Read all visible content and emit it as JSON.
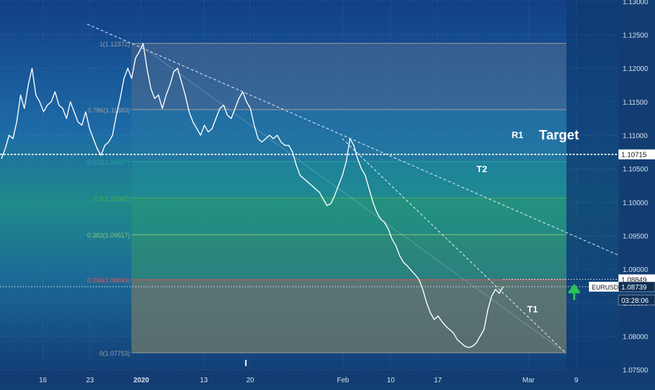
{
  "chart_data": {
    "type": "line",
    "symbol": "EURUSD",
    "y_axis": {
      "range": [
        1.0748,
        1.1302
      ],
      "ticks": [
        "1.07500",
        "1.08000",
        "1.08500",
        "1.09000",
        "1.09500",
        "1.10000",
        "1.10500",
        "1.11000",
        "1.11500",
        "1.12000",
        "1.12500",
        "1.13000"
      ]
    },
    "x_axis": {
      "ticks": [
        "16",
        "23",
        "2020",
        "13",
        "20",
        "Feb",
        "10",
        "17",
        "Mar",
        "9"
      ]
    },
    "price_labels": [
      {
        "text": "1.10715",
        "value": 1.10715,
        "style": "white"
      },
      {
        "text": "1.08849",
        "value": 1.08849,
        "style": "white"
      },
      {
        "text": "1.08739",
        "value": 1.08739,
        "style": "dark"
      },
      {
        "text": "03:28:06",
        "value": 1.0854,
        "style": "dark"
      }
    ],
    "symbol_tag": "EURUSD",
    "fibonacci": [
      {
        "label": "1(1.12372)",
        "value": 1.12372,
        "color": "#9e9e9e"
      },
      {
        "label": "0.786(1.11383)",
        "value": 1.11383,
        "color": "#9e9e9e"
      },
      {
        "label": "0.618(1.10607)",
        "value": 1.10607,
        "color": "#26a69a"
      },
      {
        "label": "0.5(1.10062)",
        "value": 1.10062,
        "color": "#4caf50"
      },
      {
        "label": "0.382(1.09517)",
        "value": 1.09517,
        "color": "#81c784"
      },
      {
        "label": "0.236(1.08843)",
        "value": 1.08843,
        "color": "#ef5350"
      },
      {
        "label": "0(1.07753)",
        "value": 1.07753,
        "color": "#9e9e9e"
      }
    ],
    "horizontal_lines": [
      1.10715,
      1.08739,
      1.08849
    ],
    "annotations": [
      "R1",
      "Target",
      "T2",
      "T1",
      "I"
    ],
    "series": [
      {
        "values": [
          1.1065,
          1.108,
          1.11,
          1.1095,
          1.112,
          1.116,
          1.114,
          1.1175,
          1.12,
          1.116,
          1.115,
          1.1135,
          1.1145,
          1.115,
          1.1165,
          1.1145,
          1.114,
          1.1125,
          1.115,
          1.1135,
          1.112,
          1.1115,
          1.1135,
          1.111,
          1.1095,
          1.108,
          1.107,
          1.1085,
          1.109,
          1.11,
          1.113,
          1.1155,
          1.1185,
          1.12,
          1.1185,
          1.1215,
          1.1225,
          1.1237,
          1.12,
          1.117,
          1.1155,
          1.116,
          1.114,
          1.116,
          1.1175,
          1.1195,
          1.12,
          1.118,
          1.116,
          1.1135,
          1.112,
          1.111,
          1.11,
          1.1115,
          1.1105,
          1.111,
          1.1125,
          1.114,
          1.1145,
          1.113,
          1.1125,
          1.114,
          1.1155,
          1.1165,
          1.115,
          1.114,
          1.1115,
          1.1095,
          1.109,
          1.1095,
          1.11,
          1.1095,
          1.11,
          1.109,
          1.1085,
          1.1085,
          1.1075,
          1.1055,
          1.104,
          1.1035,
          1.103,
          1.1025,
          1.102,
          1.1015,
          1.1005,
          1.0995,
          1.0998,
          1.101,
          1.1025,
          1.104,
          1.106,
          1.1095,
          1.1085,
          1.1065,
          1.105,
          1.104,
          1.102,
          1.1,
          1.0985,
          1.0975,
          1.097,
          1.096,
          1.0945,
          1.0935,
          1.092,
          1.091,
          1.0905,
          1.0898,
          1.0892,
          1.0885,
          1.087,
          1.085,
          1.0835,
          1.0825,
          1.083,
          1.0822,
          1.0815,
          1.081,
          1.0805,
          1.0795,
          1.079,
          1.0785,
          1.0783,
          1.0785,
          1.079,
          1.08,
          1.081,
          1.084,
          1.086,
          1.087,
          1.0864,
          1.0874
        ]
      }
    ]
  }
}
